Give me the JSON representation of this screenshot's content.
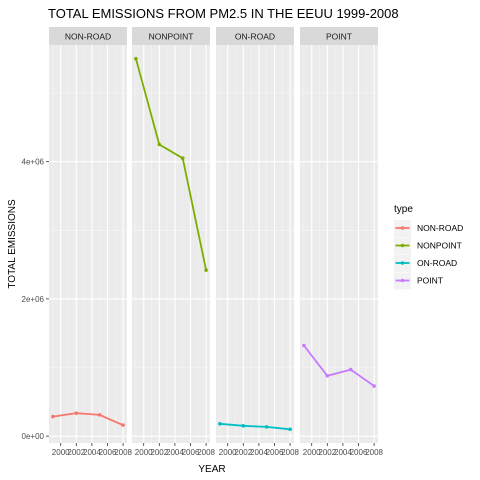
{
  "chart_data": {
    "type": "line",
    "title": "TOTAL EMISSIONS FROM PM2.5 IN THE EEUU 1999-2008",
    "xlabel": "YEAR",
    "ylabel": "TOTAL EMISSIONS",
    "facets": [
      "NON-ROAD",
      "NONPOINT",
      "ON-ROAD",
      "POINT"
    ],
    "x": [
      1999,
      2002,
      2005,
      2008
    ],
    "x_ticks": [
      2000,
      2002,
      2004,
      2006,
      2008
    ],
    "x_tick_labels": [
      "2000",
      "2002",
      "2004",
      "2006",
      "2008"
    ],
    "xlim": [
      1998.5,
      2008.5
    ],
    "ylim": [
      -100000,
      5700000
    ],
    "y_ticks": [
      0,
      2000000,
      4000000
    ],
    "y_tick_labels": [
      "0e+00",
      "2e+06",
      "4e+06"
    ],
    "grid": true,
    "legend_title": "type",
    "legend_position": "right",
    "series": [
      {
        "name": "NON-ROAD",
        "color": "#F8766D",
        "values": [
          285000,
          335000,
          310000,
          160000
        ]
      },
      {
        "name": "NONPOINT",
        "color": "#7CAE00",
        "values": [
          5500000,
          4250000,
          4050000,
          2420000
        ]
      },
      {
        "name": "ON-ROAD",
        "color": "#00BFC4",
        "values": [
          180000,
          150000,
          135000,
          100000
        ]
      },
      {
        "name": "POINT",
        "color": "#C77CFF",
        "values": [
          1320000,
          880000,
          970000,
          730000
        ]
      }
    ]
  }
}
